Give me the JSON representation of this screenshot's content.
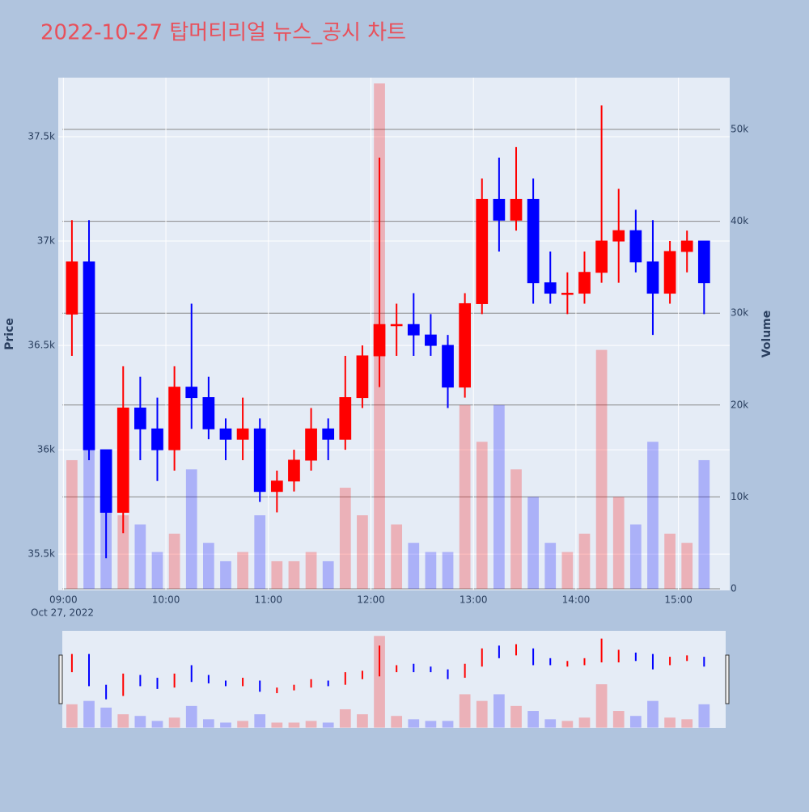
{
  "chart_data": {
    "type": "candlestick",
    "title": "2022-10-27 탑머티리얼 뉴스_공시 차트",
    "y_label": "Price",
    "y2_label": "Volume",
    "x_date_label": "Oct 27, 2022",
    "increasing_color": "#ff0000",
    "decreasing_color": "#0000ff",
    "x": [
      "2022-10-27 09:00",
      "2022-10-27 09:10",
      "2022-10-27 09:20",
      "2022-10-27 09:30",
      "2022-10-27 09:40",
      "2022-10-27 09:50",
      "2022-10-27 10:00",
      "2022-10-27 10:10",
      "2022-10-27 10:20",
      "2022-10-27 10:30",
      "2022-10-27 10:40",
      "2022-10-27 10:50",
      "2022-10-27 11:00",
      "2022-10-27 11:10",
      "2022-10-27 11:20",
      "2022-10-27 11:30",
      "2022-10-27 11:40",
      "2022-10-27 11:50",
      "2022-10-27 12:00",
      "2022-10-27 12:10",
      "2022-10-27 12:20",
      "2022-10-27 12:30",
      "2022-10-27 12:40",
      "2022-10-27 12:50",
      "2022-10-27 13:00",
      "2022-10-27 13:10",
      "2022-10-27 13:20",
      "2022-10-27 13:30",
      "2022-10-27 13:40",
      "2022-10-27 13:50",
      "2022-10-27 14:00",
      "2022-10-27 14:10",
      "2022-10-27 14:20",
      "2022-10-27 14:30",
      "2022-10-27 14:40",
      "2022-10-27 14:50",
      "2022-10-27 15:00",
      "2022-10-27 15:10"
    ],
    "open": [
      36650,
      36900,
      36000,
      35700,
      36200,
      36100,
      36000,
      36300,
      36250,
      36100,
      36050,
      36100,
      35800,
      35850,
      35950,
      36100,
      36050,
      36250,
      36450,
      36600,
      36600,
      36550,
      36500,
      36300,
      36700,
      37200,
      37100,
      37200,
      36800,
      36750,
      36750,
      36850,
      37000,
      37050,
      36900,
      36750,
      36950,
      37000
    ],
    "high": [
      37100,
      37100,
      36000,
      36400,
      36350,
      36250,
      36400,
      36700,
      36350,
      36150,
      36250,
      36150,
      35900,
      36000,
      36200,
      36150,
      36450,
      36500,
      37400,
      36700,
      36750,
      36650,
      36550,
      36750,
      37300,
      37400,
      37450,
      37300,
      36950,
      36850,
      36950,
      37650,
      37250,
      37150,
      37100,
      37000,
      37050,
      37000
    ],
    "low": [
      36450,
      35950,
      35480,
      35600,
      35950,
      35850,
      35900,
      36100,
      36050,
      35950,
      35950,
      35750,
      35700,
      35800,
      35900,
      35950,
      36000,
      36200,
      36300,
      36450,
      36450,
      36450,
      36200,
      36250,
      36650,
      36950,
      37050,
      36700,
      36700,
      36650,
      36700,
      36800,
      36800,
      36850,
      36550,
      36700,
      36850,
      36650
    ],
    "close": [
      36900,
      36000,
      35700,
      36200,
      36100,
      36000,
      36300,
      36250,
      36100,
      36050,
      36100,
      35800,
      35850,
      35950,
      36100,
      36050,
      36250,
      36450,
      36600,
      36600,
      36550,
      36500,
      36300,
      36700,
      37200,
      37100,
      37200,
      36800,
      36750,
      36750,
      36850,
      37000,
      37050,
      36900,
      36750,
      36950,
      37000,
      36800
    ],
    "volume": [
      14000,
      16000,
      12000,
      8000,
      7000,
      4000,
      6000,
      13000,
      5000,
      3000,
      4000,
      8000,
      3000,
      3000,
      4000,
      3000,
      11000,
      8000,
      55000,
      7000,
      5000,
      4000,
      4000,
      20000,
      16000,
      20000,
      13000,
      10000,
      5000,
      4000,
      6000,
      26000,
      10000,
      7000,
      16000,
      6000,
      5000,
      14000
    ],
    "xlim": [
      "2022-10-27 08:57",
      "2022-10-27 15:30"
    ],
    "xticks": [
      {
        "value": "2022-10-27 09:00",
        "label": "09:00"
      },
      {
        "value": "2022-10-27 10:00",
        "label": "10:00"
      },
      {
        "value": "2022-10-27 11:00",
        "label": "11:00"
      },
      {
        "value": "2022-10-27 12:00",
        "label": "12:00"
      },
      {
        "value": "2022-10-27 13:00",
        "label": "13:00"
      },
      {
        "value": "2022-10-27 14:00",
        "label": "14:00"
      },
      {
        "value": "2022-10-27 15:00",
        "label": "15:00"
      }
    ],
    "ylim": [
      35326,
      37783
    ],
    "yticks": [
      {
        "value": 35500,
        "label": "35.5k"
      },
      {
        "value": 36000,
        "label": "36k"
      },
      {
        "value": 36500,
        "label": "36.5k"
      },
      {
        "value": 37000,
        "label": "37k"
      },
      {
        "value": 37500,
        "label": "37.5k"
      }
    ],
    "y2lim": [
      -176,
      55634
    ],
    "y2ticks": [
      0,
      {
        "value": 10000,
        "label": "10k"
      },
      {
        "value": 20000,
        "label": "20k"
      },
      {
        "value": 30000,
        "label": "30k"
      },
      {
        "value": 40000,
        "label": "40k"
      },
      {
        "value": 50000,
        "label": "50k"
      }
    ],
    "grid": true,
    "rangeslider": true
  }
}
